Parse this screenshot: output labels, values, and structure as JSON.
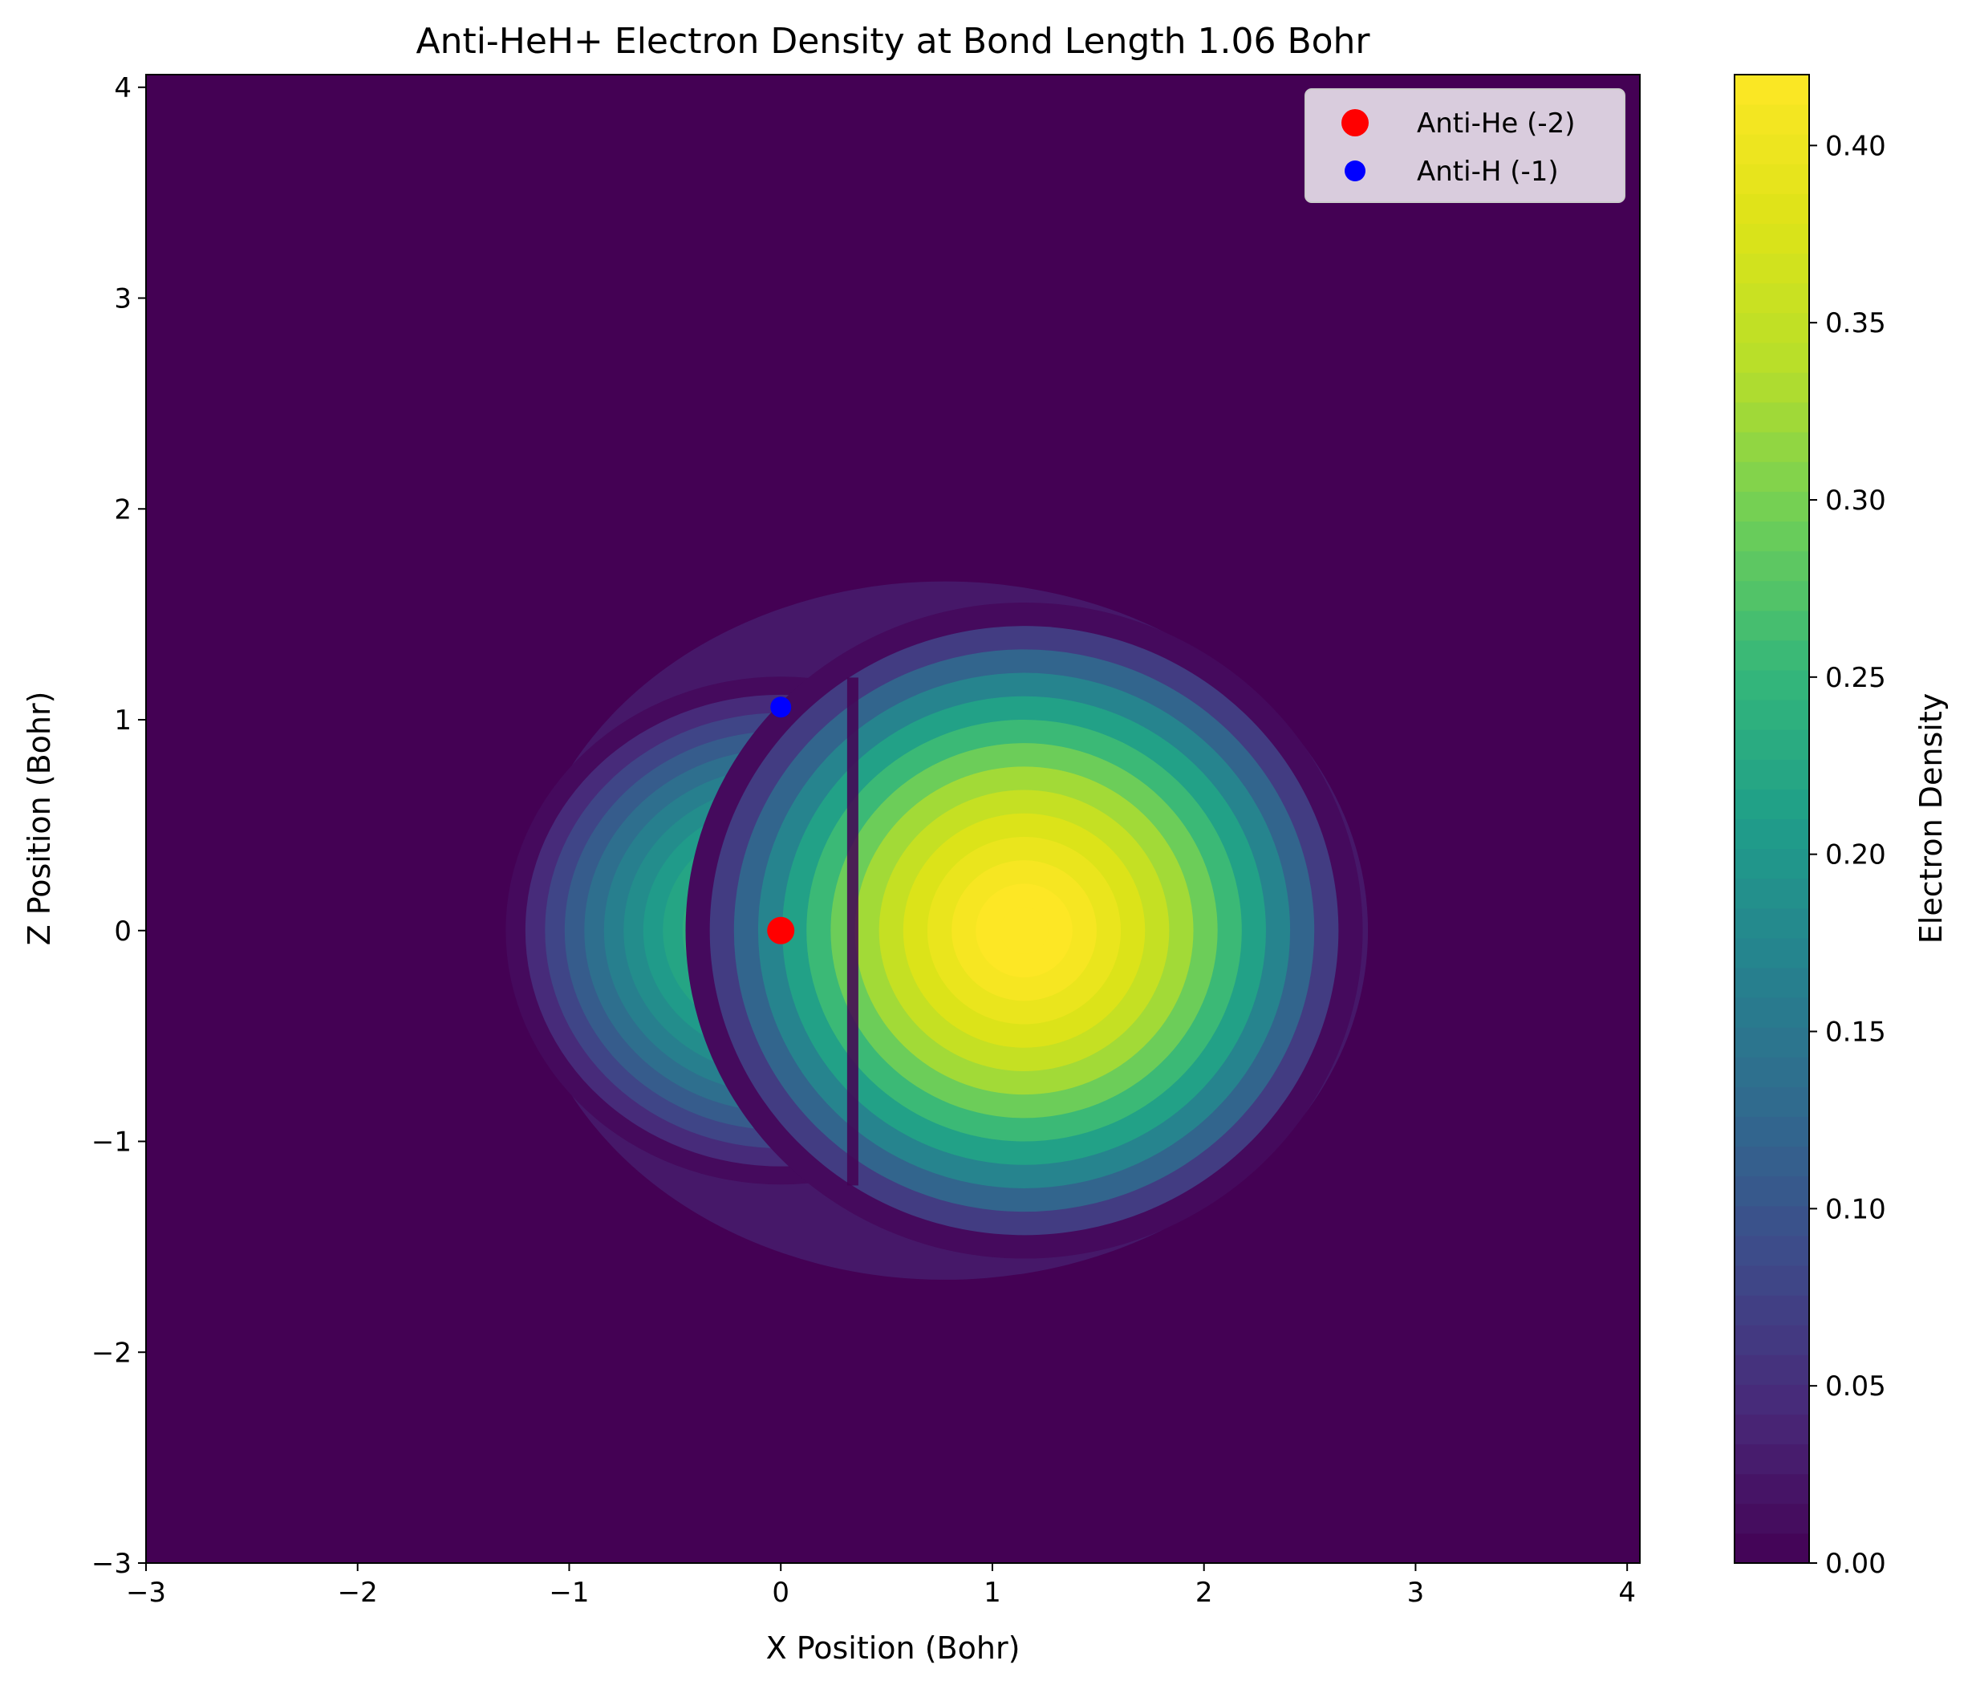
{
  "chart_data": {
    "type": "heatmap",
    "title": "Anti-HeH+ Electron Density at Bond Length 1.06 Bohr",
    "xlabel": "X Position (Bohr)",
    "ylabel": "Z Position (Bohr)",
    "xlim": [
      -3,
      4.06
    ],
    "ylim": [
      -3,
      4.06
    ],
    "xticks": [
      -3,
      -2,
      -1,
      0,
      1,
      2,
      3,
      4
    ],
    "yticks": [
      -3,
      -2,
      -1,
      0,
      1,
      2,
      3,
      4
    ],
    "xtick_labels": [
      "−3",
      "−2",
      "−1",
      "0",
      "1",
      "2",
      "3",
      "4"
    ],
    "ytick_labels": [
      "−3",
      "−2",
      "−1",
      "0",
      "1",
      "2",
      "3",
      "4"
    ],
    "grid": false,
    "colormap": "viridis",
    "colorbar": {
      "label": "Electron Density",
      "range": [
        0.0,
        0.42
      ],
      "ticks": [
        0.0,
        0.05,
        0.1,
        0.15,
        0.2,
        0.25,
        0.3,
        0.35,
        0.4
      ],
      "tick_labels": [
        "0.00",
        "0.05",
        "0.10",
        "0.15",
        "0.20",
        "0.25",
        "0.30",
        "0.35",
        "0.40"
      ]
    },
    "density_lobes": [
      {
        "center_x": 0.0,
        "center_z": 0.0,
        "peak_density": 0.26
      },
      {
        "center_x": 1.15,
        "center_z": 0.0,
        "peak_density": 0.42
      }
    ],
    "node_plane_x": 0.34,
    "series": [
      {
        "name": "Anti-He (-2)",
        "color": "#ff0000",
        "points": [
          {
            "x": 0.0,
            "z": 0.0
          }
        ]
      },
      {
        "name": "Anti-H (-1)",
        "color": "#0000ff",
        "points": [
          {
            "x": 0.0,
            "z": 1.06
          }
        ]
      }
    ],
    "legend_position": "upper right"
  }
}
